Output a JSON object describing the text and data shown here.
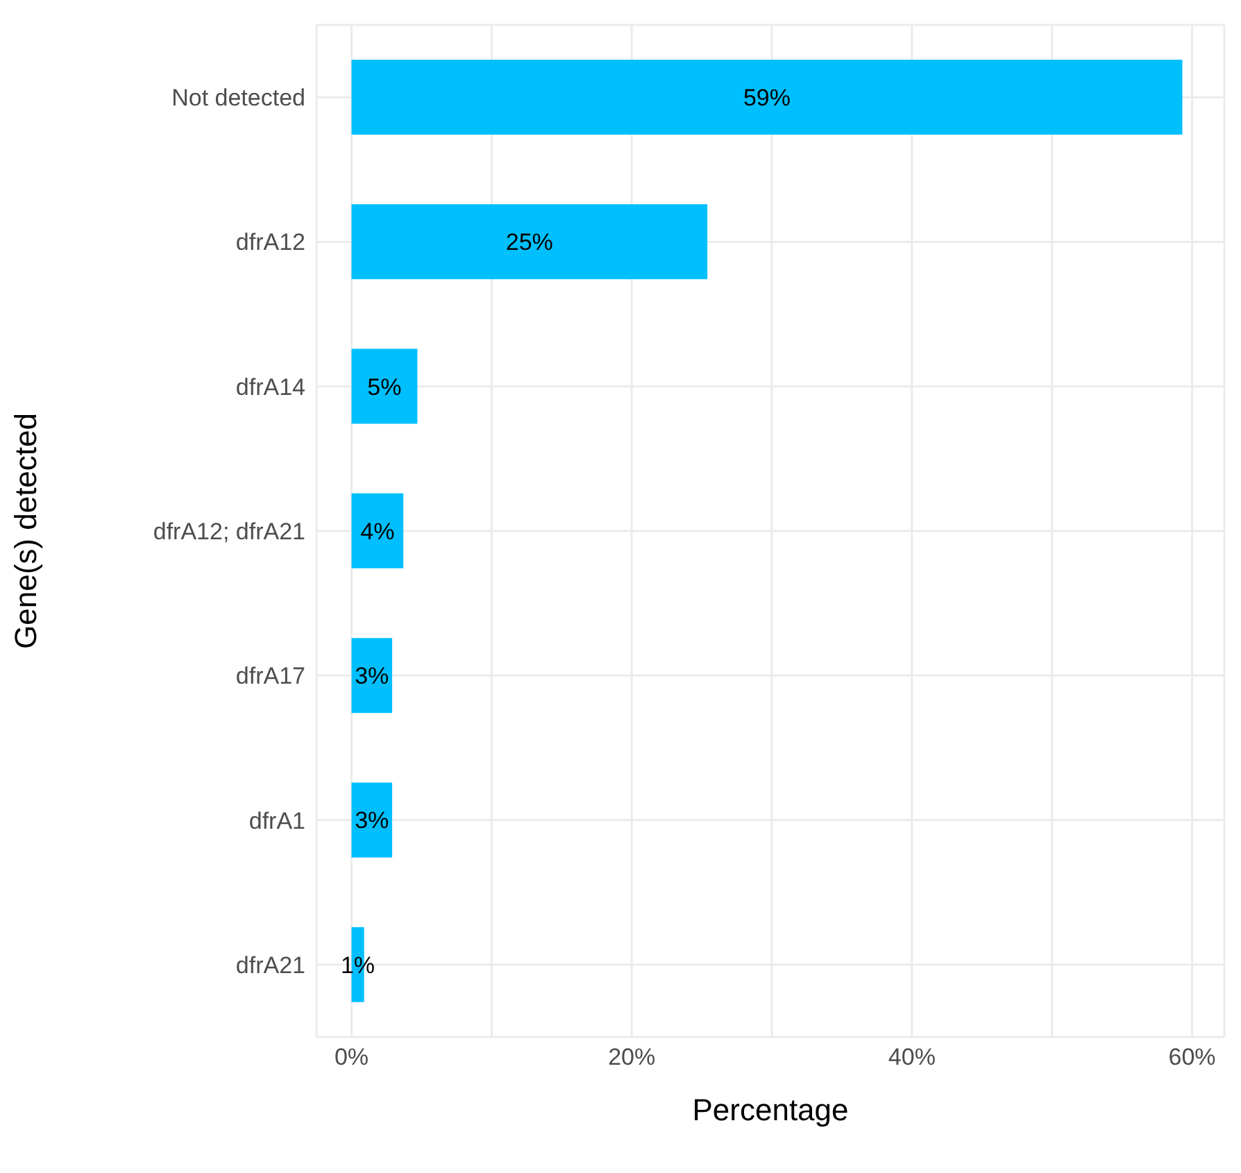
{
  "chart_data": {
    "type": "bar",
    "orientation": "horizontal",
    "xlabel": "Percentage",
    "ylabel": "Gene(s) detected",
    "categories": [
      "Not detected",
      "dfrA12",
      "dfrA14",
      "dfrA12; dfrA21",
      "dfrA17",
      "dfrA1",
      "dfrA21"
    ],
    "values": [
      59.3,
      25.4,
      4.7,
      3.7,
      2.9,
      2.9,
      0.9
    ],
    "value_labels": [
      "59%",
      "25%",
      "5%",
      "4%",
      "3%",
      "3%",
      "1%"
    ],
    "color": "#00bfff",
    "xlim": [
      -2.5,
      62.3
    ],
    "xticks": [
      {
        "value": 0,
        "label": "0%"
      },
      {
        "value": 10,
        "label": null
      },
      {
        "value": 20,
        "label": "20%"
      },
      {
        "value": 30,
        "label": null
      },
      {
        "value": 40,
        "label": "40%"
      },
      {
        "value": 50,
        "label": null
      },
      {
        "value": 60,
        "label": "60%"
      }
    ],
    "grid": true
  }
}
